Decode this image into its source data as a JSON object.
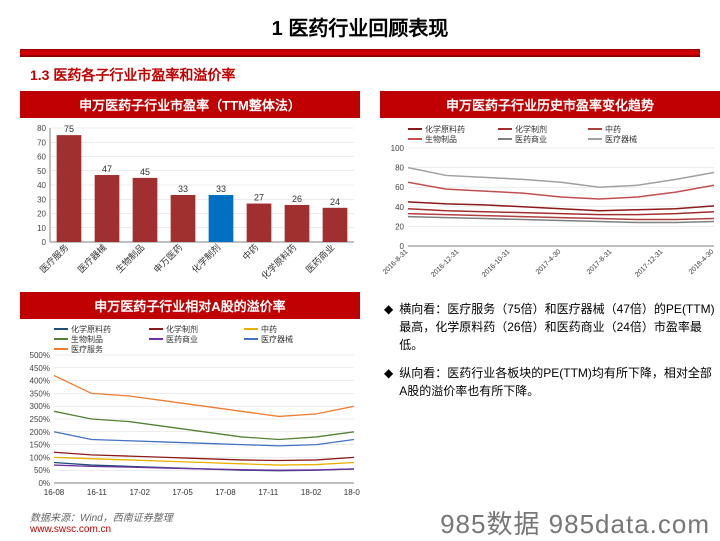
{
  "page": {
    "main_title": "1 医药行业回顾表现",
    "subtitle": "1.3 医药各子行业市盈率和溢价率",
    "source": "数据来源：Wind，西南证券整理",
    "url": "www.swsc.com.cn",
    "watermark": "985数据 985data.com"
  },
  "colors": {
    "red": "#a03030",
    "blue": "#0070c0",
    "panel_red": "#c00000",
    "grid": "#d9d9d9",
    "axis": "#808080"
  },
  "bar_chart": {
    "title": "申万医药子行业市盈率（TTM整体法）",
    "categories": [
      "医疗服务",
      "医疗器械",
      "生物制品",
      "申万医药",
      "化学制剂",
      "中药",
      "化学原料药",
      "医药商业"
    ],
    "values": [
      75,
      47,
      45,
      33,
      33,
      27,
      26,
      24
    ],
    "bar_colors": [
      "#a03030",
      "#a03030",
      "#a03030",
      "#a03030",
      "#0070c0",
      "#a03030",
      "#a03030",
      "#a03030"
    ],
    "ylim": [
      0,
      80
    ],
    "ystep": 10
  },
  "trend_chart": {
    "title": "申万医药子行业历史市盈率变化趋势",
    "legend": [
      "化学原料药",
      "化学制剂",
      "中药",
      "生物制品",
      "医药商业",
      "医疗器械"
    ],
    "legend_colors": [
      "#8b1a1a",
      "#a03030",
      "#b04040",
      "#c05050",
      "#808080",
      "#a0a0a0"
    ],
    "x_labels": [
      "2016-8-31",
      "2016-12-31",
      "2016-10-31",
      "2017-4-30",
      "2017-8-31",
      "2017-12-31",
      "2018-4-30"
    ],
    "ylim": [
      0,
      100
    ],
    "ystep": 20,
    "series": [
      {
        "color": "#8b1a1a",
        "y": [
          45,
          43,
          42,
          40,
          38,
          36,
          37,
          38,
          41
        ]
      },
      {
        "color": "#a03030",
        "y": [
          38,
          36,
          35,
          34,
          33,
          32,
          32,
          33,
          35
        ]
      },
      {
        "color": "#b04040",
        "y": [
          33,
          32,
          31,
          30,
          29,
          28,
          27,
          27,
          28
        ]
      },
      {
        "color": "#c05050",
        "y": [
          65,
          58,
          56,
          54,
          50,
          48,
          50,
          55,
          62
        ]
      },
      {
        "color": "#808080",
        "y": [
          30,
          29,
          28,
          27,
          26,
          25,
          24,
          24,
          25
        ]
      },
      {
        "color": "#a0a0a0",
        "y": [
          80,
          72,
          70,
          68,
          65,
          60,
          62,
          68,
          75
        ]
      }
    ]
  },
  "premium_chart": {
    "title": "申万医药子行业相对A股的溢价率",
    "legend": [
      "化学原料药",
      "化学制剂",
      "中药",
      "生物制品",
      "医药商业",
      "医疗器械",
      "医疗服务"
    ],
    "legend_colors": [
      "#1f4e79",
      "#8b1a1a",
      "#e8b000",
      "#548235",
      "#7030a0",
      "#4472c4",
      "#ed7d31"
    ],
    "x_labels": [
      "16-08",
      "16-11",
      "17-02",
      "17-05",
      "17-08",
      "17-11",
      "18-02",
      "18-05"
    ],
    "ylim": [
      0,
      500
    ],
    "ystep": 50,
    "series": [
      {
        "color": "#1f4e79",
        "y": [
          80,
          70,
          65,
          60,
          55,
          50,
          48,
          50,
          55
        ]
      },
      {
        "color": "#8b1a1a",
        "y": [
          120,
          110,
          105,
          100,
          95,
          90,
          88,
          90,
          100
        ]
      },
      {
        "color": "#e8b000",
        "y": [
          100,
          95,
          90,
          85,
          80,
          75,
          70,
          72,
          80
        ]
      },
      {
        "color": "#548235",
        "y": [
          280,
          250,
          240,
          220,
          200,
          180,
          170,
          180,
          200
        ]
      },
      {
        "color": "#7030a0",
        "y": [
          70,
          65,
          62,
          58,
          55,
          52,
          50,
          51,
          55
        ]
      },
      {
        "color": "#4472c4",
        "y": [
          200,
          170,
          165,
          160,
          155,
          150,
          145,
          150,
          170
        ]
      },
      {
        "color": "#ed7d31",
        "y": [
          420,
          350,
          340,
          320,
          300,
          280,
          260,
          270,
          300
        ]
      }
    ]
  },
  "bullets": [
    "横向看：医疗服务（75倍）和医疗器械（47倍）的PE(TTM)最高，化学原料药（26倍）和医药商业（24倍）市盈率最低。",
    "纵向看：医药行业各板块的PE(TTM)均有所下降，相对全部A股的溢价率也有所下降。"
  ]
}
